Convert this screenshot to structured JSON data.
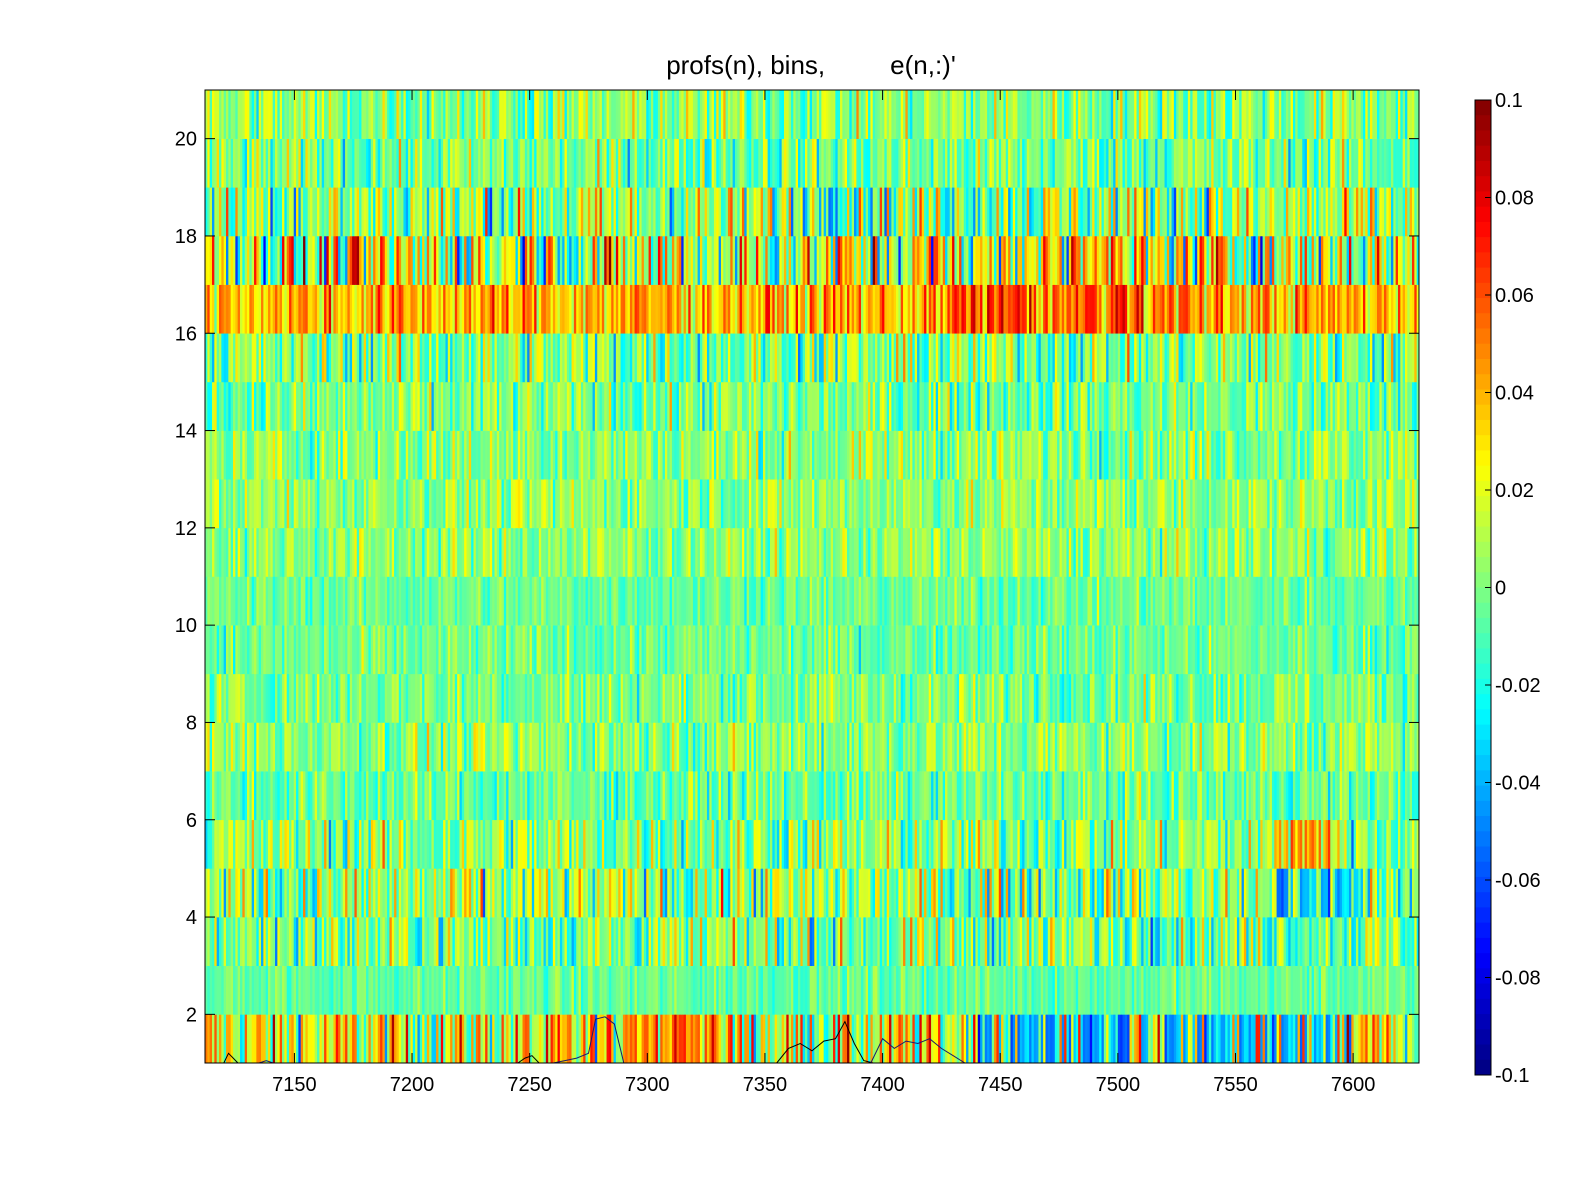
{
  "chart_data": {
    "type": "heatmap",
    "title": "profs(n), bins,         e(n,:)'",
    "xlabel": "",
    "ylabel": "",
    "xlim": [
      7112,
      7628
    ],
    "ylim": [
      1,
      21
    ],
    "x_ticks": [
      7150,
      7200,
      7250,
      7300,
      7350,
      7400,
      7450,
      7500,
      7550,
      7600
    ],
    "y_ticks": [
      2,
      4,
      6,
      8,
      10,
      12,
      14,
      16,
      18,
      20
    ],
    "rows": 20,
    "columns": 520,
    "colormap": "jet",
    "clim": [
      -0.1,
      0.1
    ],
    "colorbar_ticks": [
      "0.1",
      "0.08",
      "0.06",
      "0.04",
      "0.02",
      "0",
      "-0.02",
      "-0.04",
      "-0.06",
      "-0.08",
      "-0.1"
    ],
    "row_bias": [
      0.02,
      -0.005,
      0,
      0.003,
      0.002,
      -0.005,
      0.003,
      0,
      -0.004,
      -0.004,
      0.003,
      0.004,
      0.003,
      -0.002,
      0,
      0.04,
      0.015,
      0.005,
      -0.002,
      0.003
    ],
    "row_spread": [
      0.045,
      0.012,
      0.03,
      0.035,
      0.03,
      0.018,
      0.02,
      0.018,
      0.015,
      0.013,
      0.018,
      0.018,
      0.02,
      0.022,
      0.03,
      0.025,
      0.055,
      0.04,
      0.025,
      0.025
    ],
    "strong_regions": [
      {
        "row": 16,
        "x": [
          7430,
          7530
        ],
        "value": 0.065
      },
      {
        "row": 17,
        "x": [
          7440,
          7500
        ],
        "value": 0.045
      },
      {
        "row": 1,
        "x": [
          7290,
          7345
        ],
        "value": 0.055
      },
      {
        "row": 1,
        "x": [
          7440,
          7600
        ],
        "value": -0.045
      },
      {
        "row": 5,
        "x": [
          7565,
          7590
        ],
        "value": 0.05
      },
      {
        "row": 4,
        "x": [
          7565,
          7600
        ],
        "value": -0.045
      }
    ],
    "overlay_profiles": [
      {
        "x": [
          7120,
          7122,
          7124,
          7126
        ],
        "y": [
          1.0,
          1.2,
          1.1,
          1.0
        ]
      },
      {
        "x": [
          7135,
          7138,
          7141
        ],
        "y": [
          1.0,
          1.05,
          1.0
        ]
      },
      {
        "x": [
          7245,
          7248,
          7251,
          7254
        ],
        "y": [
          1.0,
          1.1,
          1.15,
          1.0
        ]
      },
      {
        "x": [
          7260,
          7265,
          7270,
          7275,
          7278,
          7282,
          7286,
          7290
        ],
        "y": [
          1.0,
          1.05,
          1.1,
          1.2,
          1.9,
          1.95,
          1.8,
          1.0
        ]
      },
      {
        "x": [
          7355,
          7360,
          7365,
          7370,
          7375,
          7380,
          7384,
          7388,
          7392,
          7396
        ],
        "y": [
          1.0,
          1.3,
          1.4,
          1.25,
          1.45,
          1.5,
          1.85,
          1.4,
          1.05,
          1.0
        ]
      },
      {
        "x": [
          7395,
          7400,
          7405,
          7410,
          7415,
          7420,
          7425,
          7430,
          7435
        ],
        "y": [
          1.0,
          1.5,
          1.3,
          1.45,
          1.4,
          1.5,
          1.3,
          1.15,
          1.0
        ]
      }
    ]
  }
}
